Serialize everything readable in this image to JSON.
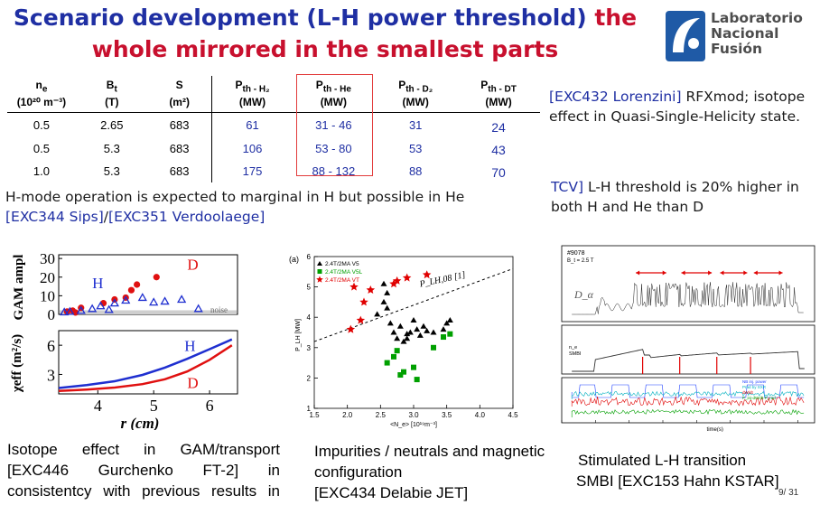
{
  "title": {
    "part1_blue": "Scenario development (L-H power threshold)",
    "part1_red": " the",
    "line2_red": "whole mirrored in the smallest parts"
  },
  "logo": {
    "line1": "Laboratorio",
    "line2": "Nacional",
    "line3": "Fusión",
    "icon": "laboratorio-logo-icon"
  },
  "table": {
    "headers": [
      {
        "sym": "n",
        "sub": "e",
        "unit": "(10²⁰ m⁻³)"
      },
      {
        "sym": "B",
        "sub": "t",
        "unit": "(T)"
      },
      {
        "sym": "S",
        "sub": "",
        "unit": "(m²)"
      },
      {
        "sym": "P",
        "sub": "th - H₂",
        "unit": "(MW)"
      },
      {
        "sym": "P",
        "sub": "th - He",
        "unit": "(MW)"
      },
      {
        "sym": "P",
        "sub": "th - D₂",
        "unit": "(MW)"
      },
      {
        "sym": "P",
        "sub": "th - DT",
        "unit": "(MW)"
      }
    ],
    "rows": [
      [
        "0.5",
        "2.65",
        "683",
        "61",
        "31 - 46",
        "31",
        "24"
      ],
      [
        "0.5",
        "5.3",
        "683",
        "106",
        "53 - 80",
        "53",
        "43"
      ],
      [
        "1.0",
        "5.3",
        "683",
        "175",
        "88 - 132",
        "88",
        "70"
      ]
    ],
    "highlight_color": "#e23b3b",
    "value_color": "#1f2fa3"
  },
  "notes": {
    "exc432_blue": "[EXC432 Lorenzini]",
    "exc432_rest": " RFXmod; isotope effect in Quasi-Single-Helicity state.",
    "hmode_text": "H-mode operation is expected to marginal in H but possible in He",
    "hmode_ref1": "[EXC344 Sips]",
    "hmode_sep": "/",
    "hmode_ref2": "[EXC351 Verdoolaege]",
    "tcv_blue": "TCV]",
    "tcv_rest": " L-H threshold is 20% higher in both H and He than D"
  },
  "captions": {
    "gam": "Isotope effect in GAM/transport [EXC446 Gurchenko FT-2] in consistentcy with previous results in TEXTOR",
    "impurities_line1": "Impurities / neutrals and magnetic",
    "impurities_line2": "configuration",
    "impurities_line3": "[EXC434 Delabie JET]",
    "smbi_line1": "Stimulated L-H transition",
    "smbi_line2": "SMBI [EXC153 Hahn KSTAR]"
  },
  "page_number": "9/ 31",
  "gam_plot": {
    "ylabel_top": "GAM ampl",
    "ylabel_bottom": "χeff (m²/s)",
    "xlabel": "r (cm)",
    "label_H": "H",
    "label_D": "D",
    "noise_label": "noise",
    "yticks_top": [
      "0",
      "10",
      "20",
      "30"
    ],
    "yticks_bottom": [
      "3",
      "6"
    ],
    "xticks": [
      "4",
      "5",
      "6"
    ],
    "h_color": "#1f2fd0",
    "d_color": "#e01010",
    "h_curve": [
      [
        3.3,
        1.6
      ],
      [
        3.8,
        1.9
      ],
      [
        4.3,
        2.3
      ],
      [
        4.8,
        2.95
      ],
      [
        5.2,
        3.7
      ],
      [
        5.6,
        4.6
      ],
      [
        6.0,
        5.6
      ],
      [
        6.4,
        6.6
      ]
    ],
    "d_curve": [
      [
        3.3,
        1.3
      ],
      [
        3.8,
        1.45
      ],
      [
        4.3,
        1.65
      ],
      [
        4.8,
        2.0
      ],
      [
        5.2,
        2.5
      ],
      [
        5.6,
        3.3
      ],
      [
        6.0,
        4.5
      ],
      [
        6.4,
        6.0
      ]
    ]
  },
  "jet_plot": {
    "panel_label": "(a)",
    "ylabel": "P_LH [MW]",
    "xlabel": "<N_e> [10¹⁹m⁻³]",
    "scaling_label": "P_LH,08 [1]",
    "xticks": [
      "1.5",
      "2.0",
      "2.5",
      "3.0",
      "3.5",
      "4.0",
      "4.5"
    ],
    "yticks": [
      "1",
      "2",
      "3",
      "4",
      "5",
      "6"
    ],
    "legend": [
      {
        "label": "2.4T/2MA V5",
        "color": "#000000",
        "marker": "triangle"
      },
      {
        "label": "2.4T/2MA V5L",
        "color": "#00a000",
        "marker": "square"
      },
      {
        "label": "2.4T/2MA VT",
        "color": "#e00000",
        "marker": "star"
      }
    ],
    "black_triangles": [
      [
        2.45,
        4.1
      ],
      [
        2.55,
        4.5
      ],
      [
        2.6,
        4.3
      ],
      [
        2.65,
        3.8
      ],
      [
        2.7,
        3.5
      ],
      [
        2.75,
        3.3
      ],
      [
        2.8,
        3.7
      ],
      [
        2.85,
        3.2
      ],
      [
        2.9,
        3.45
      ],
      [
        2.95,
        3.5
      ],
      [
        3.0,
        3.9
      ],
      [
        3.05,
        3.6
      ],
      [
        3.1,
        3.4
      ],
      [
        3.2,
        3.55
      ],
      [
        3.3,
        3.5
      ],
      [
        3.45,
        3.6
      ],
      [
        3.5,
        3.8
      ],
      [
        3.55,
        3.9
      ],
      [
        2.55,
        5.1
      ],
      [
        2.6,
        4.8
      ],
      [
        2.9,
        3.3
      ],
      [
        3.15,
        3.7
      ]
    ],
    "green_squares": [
      [
        2.6,
        2.5
      ],
      [
        2.75,
        2.9
      ],
      [
        2.8,
        2.1
      ],
      [
        2.85,
        2.2
      ],
      [
        3.0,
        2.35
      ],
      [
        3.05,
        1.95
      ],
      [
        3.3,
        3.0
      ],
      [
        3.45,
        3.35
      ],
      [
        3.55,
        3.45
      ],
      [
        2.7,
        2.7
      ]
    ],
    "red_stars": [
      [
        2.1,
        5.0
      ],
      [
        2.25,
        4.5
      ],
      [
        2.35,
        4.9
      ],
      [
        2.7,
        5.1
      ],
      [
        2.75,
        5.2
      ],
      [
        2.9,
        5.3
      ],
      [
        3.2,
        5.4
      ],
      [
        2.2,
        3.9
      ],
      [
        2.05,
        3.6
      ]
    ],
    "scaling_line": [
      [
        1.5,
        3.2
      ],
      [
        4.5,
        5.6
      ]
    ]
  },
  "kstar_plot": {
    "shot": "#9078",
    "bt": "B_t = 2.5 T",
    "dalpha": "D_α",
    "time_label": "time(s)",
    "legend_ne": [
      "n_e",
      "SMBI"
    ],
    "legend_power": [
      "NB inj. power",
      "Prad by SXR",
      "dW/dt",
      "P_inj-dW/dt-P_rad"
    ],
    "xticks": [
      "0",
      "1",
      "2",
      "3",
      "4",
      "5",
      "6",
      "7"
    ]
  }
}
